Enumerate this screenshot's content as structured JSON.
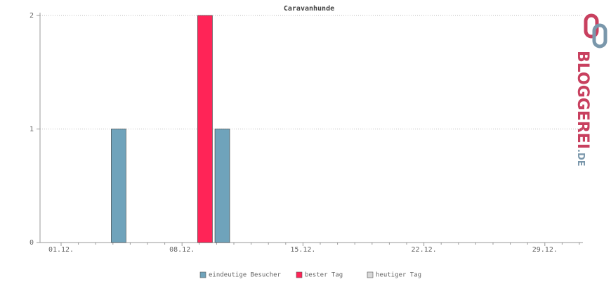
{
  "chart_data": {
    "type": "bar",
    "title": "Caravanhunde",
    "categories": [
      "01.12.",
      null,
      null,
      null,
      null,
      null,
      null,
      "08.12.",
      null,
      null,
      null,
      null,
      null,
      null,
      "15.12.",
      null,
      null,
      null,
      null,
      null,
      null,
      "22.12.",
      null,
      null,
      null,
      null,
      null,
      null,
      "29.12.",
      null,
      null
    ],
    "series": [
      {
        "name": "eindeutige Besucher",
        "color": "#6fa3bb",
        "values": [
          0,
          0,
          0,
          1,
          0,
          0,
          0,
          0,
          null,
          1,
          0,
          0,
          0,
          0,
          0,
          0,
          0,
          0,
          0,
          0,
          0,
          0,
          0,
          0,
          0,
          0,
          0,
          0,
          0,
          0,
          0
        ]
      },
      {
        "name": "bester Tag",
        "color": "#ff2457",
        "values": [
          null,
          null,
          null,
          null,
          null,
          null,
          null,
          null,
          2,
          null,
          null,
          null,
          null,
          null,
          null,
          null,
          null,
          null,
          null,
          null,
          null,
          null,
          null,
          null,
          null,
          null,
          null,
          null,
          null,
          null,
          null
        ]
      },
      {
        "name": "heutiger Tag",
        "color": "#d8d8d8",
        "values": [
          null,
          null,
          null,
          null,
          null,
          null,
          null,
          null,
          null,
          null,
          null,
          null,
          null,
          null,
          null,
          null,
          null,
          null,
          null,
          null,
          null,
          null,
          null,
          null,
          null,
          null,
          null,
          null,
          null,
          null,
          null
        ]
      }
    ],
    "ylim": [
      0,
      2
    ],
    "yticks": [
      0,
      1,
      2
    ],
    "grid": true,
    "logo": "BLOGGEREI",
    "logo_suffix": ".DE"
  }
}
